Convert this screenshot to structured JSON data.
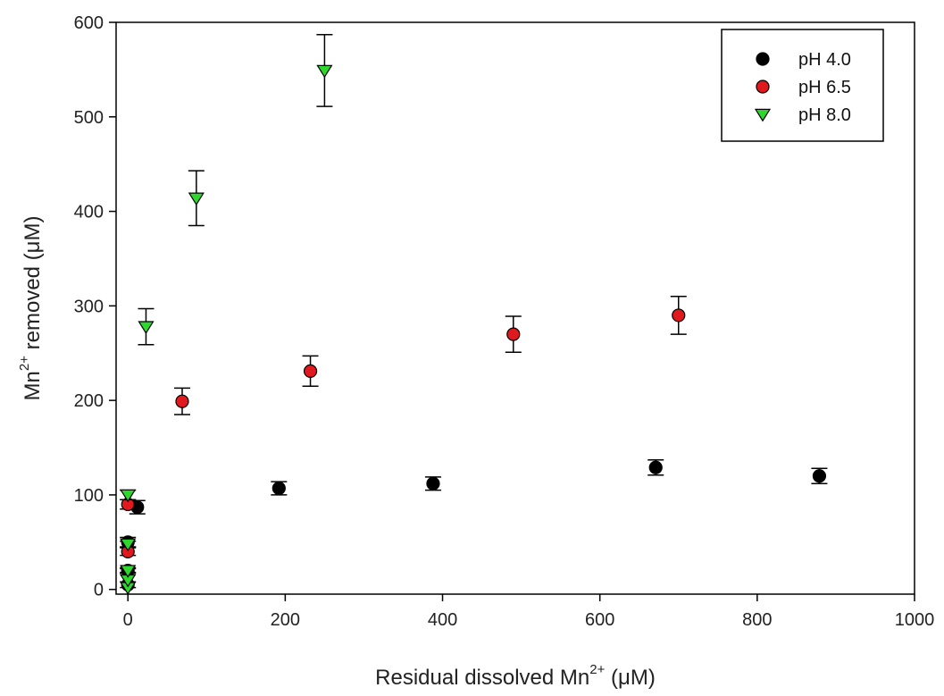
{
  "chart_data": {
    "type": "scatter",
    "xlabel": "Residual dissolved Mn²⁺ (μM)",
    "ylabel": "Mn²⁺ removed (μM)",
    "xlim": [
      -15,
      1000
    ],
    "ylim": [
      -5,
      600
    ],
    "xticks": [
      0,
      200,
      400,
      600,
      800,
      1000
    ],
    "yticks": [
      0,
      100,
      200,
      300,
      400,
      500,
      600
    ],
    "legend_position": "top-right",
    "grid": false,
    "series": [
      {
        "name": "pH 4.0",
        "marker": "circle",
        "color": "#000000",
        "points": [
          {
            "x": 0,
            "y": 5,
            "err": 3
          },
          {
            "x": 0,
            "y": 20,
            "err": 3
          },
          {
            "x": 0,
            "y": 50,
            "err": 5
          },
          {
            "x": 12,
            "y": 87,
            "err": 7
          },
          {
            "x": 192,
            "y": 107,
            "err": 7
          },
          {
            "x": 388,
            "y": 112,
            "err": 7
          },
          {
            "x": 671,
            "y": 129,
            "err": 8
          },
          {
            "x": 879,
            "y": 120,
            "err": 8
          }
        ]
      },
      {
        "name": "pH 6.5",
        "marker": "circle",
        "color": "#e0191f",
        "points": [
          {
            "x": 0,
            "y": 40,
            "err": 4
          },
          {
            "x": 0,
            "y": 90,
            "err": 5
          },
          {
            "x": 69,
            "y": 199,
            "err": 14
          },
          {
            "x": 232,
            "y": 231,
            "err": 16
          },
          {
            "x": 490,
            "y": 270,
            "err": 19
          },
          {
            "x": 700,
            "y": 290,
            "err": 20
          }
        ]
      },
      {
        "name": "pH 8.0",
        "marker": "triangle-down",
        "color": "#2ed62e",
        "points": [
          {
            "x": 0,
            "y": 2,
            "err": 0
          },
          {
            "x": 0,
            "y": 10,
            "err": 0
          },
          {
            "x": 0,
            "y": 20,
            "err": 2
          },
          {
            "x": 0,
            "y": 48,
            "err": 3
          },
          {
            "x": 0,
            "y": 100,
            "err": 5
          },
          {
            "x": 23,
            "y": 278,
            "err": 19
          },
          {
            "x": 87,
            "y": 414,
            "err": 29
          },
          {
            "x": 250,
            "y": 549,
            "err": 38
          }
        ]
      }
    ]
  }
}
